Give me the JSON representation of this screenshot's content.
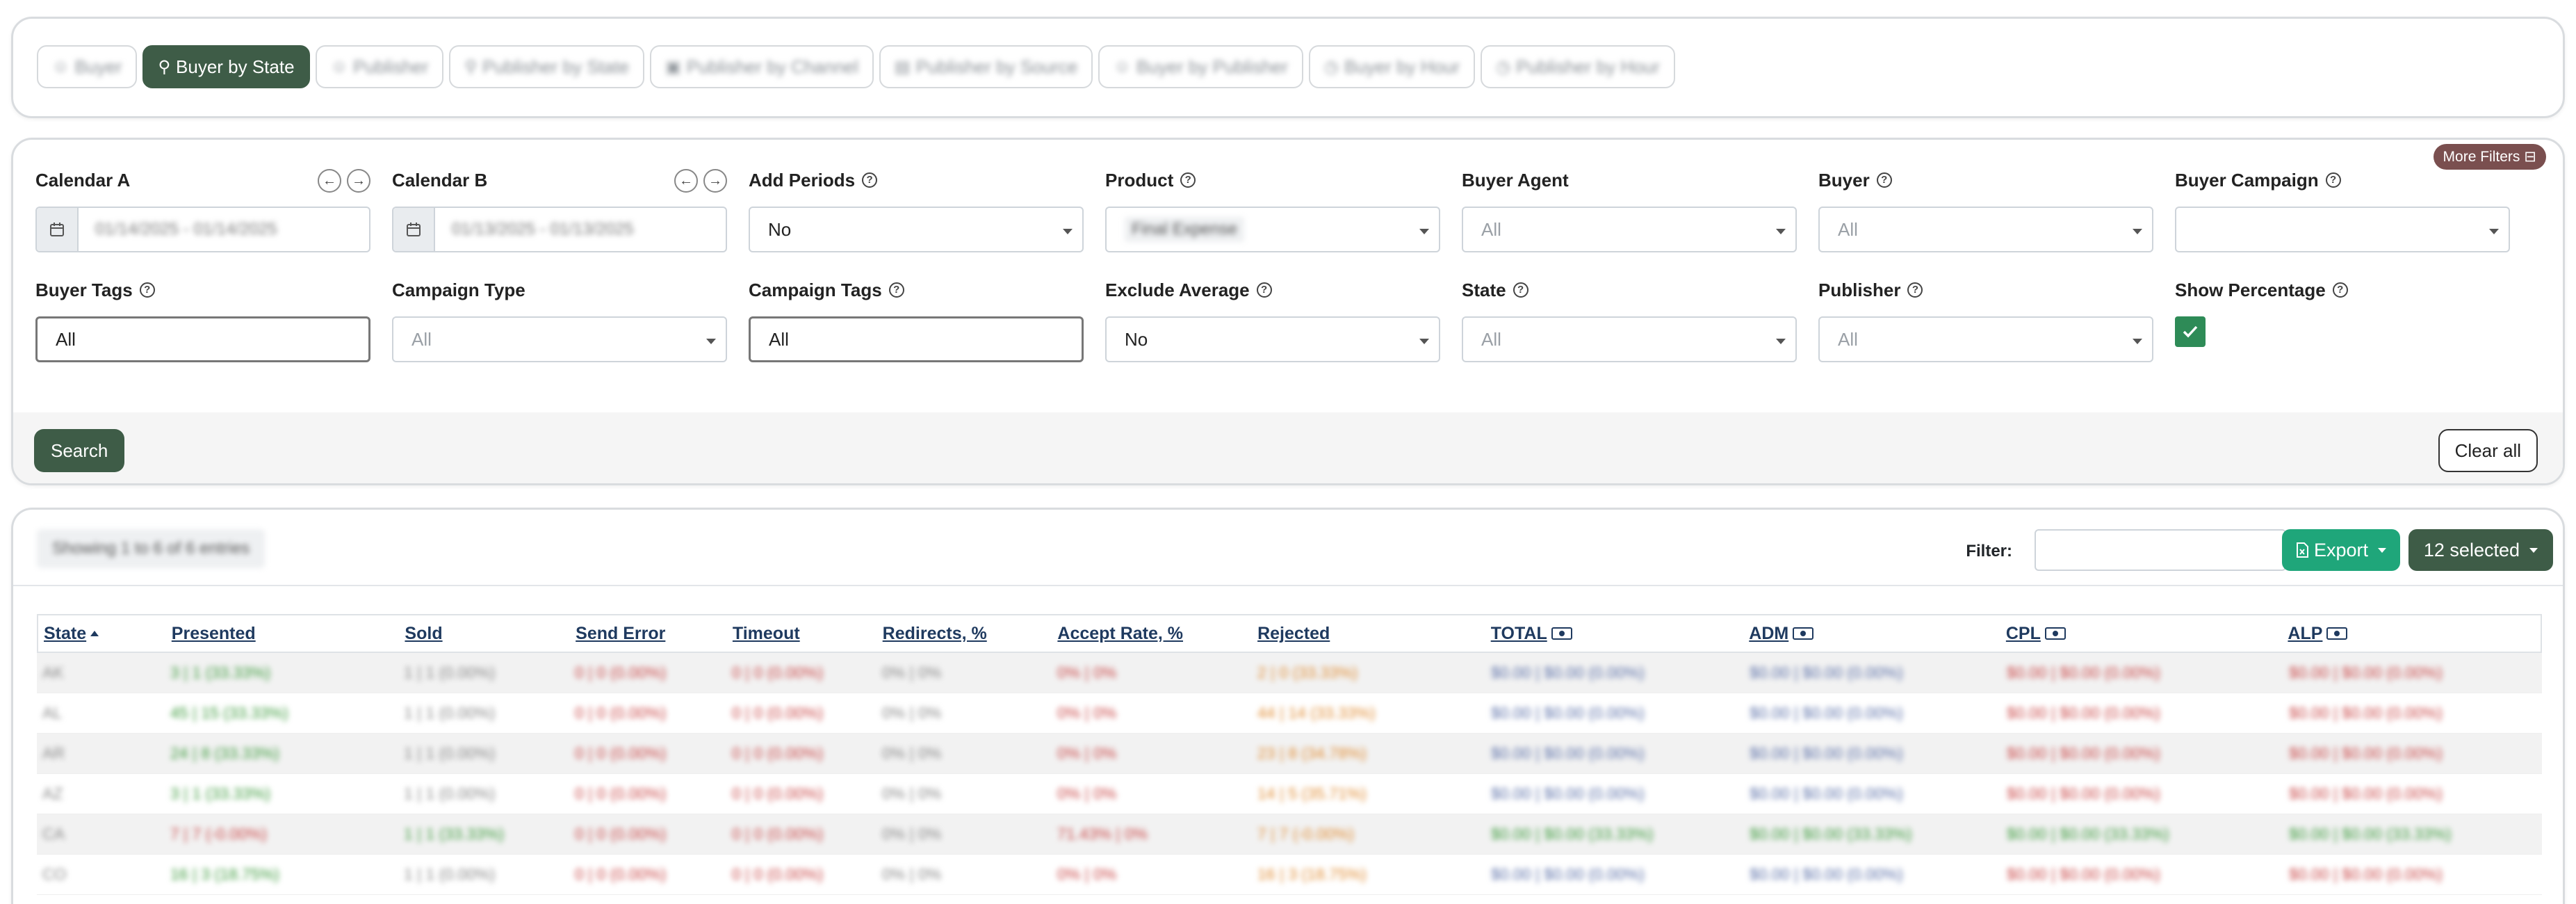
{
  "tabs": [
    {
      "label": "Buyer",
      "icon": "user-icon",
      "active": false
    },
    {
      "label": "Buyer by State",
      "icon": "map-pin-icon",
      "active": true
    },
    {
      "label": "Publisher",
      "icon": "user-icon",
      "active": false
    },
    {
      "label": "Publisher by State",
      "icon": "map-pin-icon",
      "active": false
    },
    {
      "label": "Publisher by Channel",
      "icon": "channel-icon",
      "active": false
    },
    {
      "label": "Publisher by Source",
      "icon": "source-icon",
      "active": false
    },
    {
      "label": "Buyer by Publisher",
      "icon": "user-icon",
      "active": false
    },
    {
      "label": "Buyer by Hour",
      "icon": "clock-icon",
      "active": false
    },
    {
      "label": "Publisher by Hour",
      "icon": "clock-icon",
      "active": false
    }
  ],
  "filters": {
    "more_filters": "More Filters",
    "calendar_a": {
      "label": "Calendar A",
      "value": "01/14/2025 - 01/14/2025"
    },
    "calendar_b": {
      "label": "Calendar B",
      "value": "01/13/2025 - 01/13/2025"
    },
    "add_periods": {
      "label": "Add Periods",
      "value": "No"
    },
    "product": {
      "label": "Product",
      "value": "Final Expense"
    },
    "buyer_agent": {
      "label": "Buyer Agent",
      "value": "All"
    },
    "buyer": {
      "label": "Buyer",
      "value": "All"
    },
    "buyer_campaign": {
      "label": "Buyer Campaign",
      "value": ""
    },
    "buyer_tags": {
      "label": "Buyer Tags",
      "value": "All"
    },
    "campaign_type": {
      "label": "Campaign Type",
      "value": "All"
    },
    "campaign_tags": {
      "label": "Campaign Tags",
      "value": "All"
    },
    "exclude_average": {
      "label": "Exclude Average",
      "value": "No"
    },
    "state": {
      "label": "State",
      "value": "All"
    },
    "publisher": {
      "label": "Publisher",
      "value": "All"
    },
    "show_percentage": {
      "label": "Show Percentage",
      "checked": true
    },
    "search_label": "Search",
    "clear_label": "Clear all"
  },
  "table": {
    "showing": "Showing 1 to 6 of 6 entries",
    "filter_label": "Filter:",
    "export_label": "Export",
    "selected_label": "12 selected",
    "columns": [
      "State",
      "Presented",
      "Sold",
      "Send Error",
      "Timeout",
      "Redirects, %",
      "Accept Rate, %",
      "Rejected",
      "TOTAL",
      "ADM",
      "CPL",
      "ALP"
    ],
    "rows": [
      [
        "AK",
        "3 | 1 (33.33%)",
        "1 | 1 (0.00%)",
        "0 | 0 (0.00%)",
        "0 | 0 (0.00%)",
        "0% | 0%",
        "0% | 0%",
        "2 | 0 (33.33%)",
        "$0.00 | $0.00 (0.00%)",
        "$0.00 | $0.00 (0.00%)",
        "$0.00 | $0.00 (0.00%)",
        "$0.00 | $0.00 (0.00%)"
      ],
      [
        "AL",
        "45 | 15 (33.33%)",
        "1 | 1 (0.00%)",
        "0 | 0 (0.00%)",
        "0 | 0 (0.00%)",
        "0% | 0%",
        "0% | 0%",
        "44 | 14 (33.33%)",
        "$0.00 | $0.00 (0.00%)",
        "$0.00 | $0.00 (0.00%)",
        "$0.00 | $0.00 (0.00%)",
        "$0.00 | $0.00 (0.00%)"
      ],
      [
        "AR",
        "24 | 8 (33.33%)",
        "1 | 1 (0.00%)",
        "0 | 0 (0.00%)",
        "0 | 0 (0.00%)",
        "0% | 0%",
        "0% | 0%",
        "23 | 8 (34.78%)",
        "$0.00 | $0.00 (0.00%)",
        "$0.00 | $0.00 (0.00%)",
        "$0.00 | $0.00 (0.00%)",
        "$0.00 | $0.00 (0.00%)"
      ],
      [
        "AZ",
        "3 | 1 (33.33%)",
        "1 | 1 (0.00%)",
        "0 | 0 (0.00%)",
        "0 | 0 (0.00%)",
        "0% | 0%",
        "0% | 0%",
        "14 | 5 (35.71%)",
        "$0.00 | $0.00 (0.00%)",
        "$0.00 | $0.00 (0.00%)",
        "$0.00 | $0.00 (0.00%)",
        "$0.00 | $0.00 (0.00%)"
      ],
      [
        "CA",
        "7 | 7 (-0.00%)",
        "1 | 1 (33.33%)",
        "0 | 0 (0.00%)",
        "0 | 0 (0.00%)",
        "0% | 0%",
        "71.43% | 0%",
        "7 | 7 (-0.00%)",
        "$0.00 | $0.00 (33.33%)",
        "$0.00 | $0.00 (33.33%)",
        "$0.00 | $0.00 (33.33%)",
        "$0.00 | $0.00 (33.33%)"
      ],
      [
        "CO",
        "16 | 3 (18.75%)",
        "1 | 1 (0.00%)",
        "0 | 0 (0.00%)",
        "0 | 0 (0.00%)",
        "0% | 0%",
        "0% | 0%",
        "16 | 3 (18.75%)",
        "$0.00 | $0.00 (0.00%)",
        "$0.00 | $0.00 (0.00%)",
        "$0.00 | $0.00 (0.00%)",
        "$0.00 | $0.00 (0.00%)"
      ]
    ],
    "row_colors": [
      [
        "gry",
        "grn",
        "gry",
        "red",
        "red",
        "gry",
        "red",
        "org",
        "blu",
        "blu",
        "red",
        "red"
      ],
      [
        "gry",
        "grn",
        "gry",
        "red",
        "red",
        "gry",
        "red",
        "org",
        "blu",
        "blu",
        "red",
        "red"
      ],
      [
        "gry",
        "grn",
        "gry",
        "red",
        "red",
        "gry",
        "red",
        "org",
        "blu",
        "blu",
        "red",
        "red"
      ],
      [
        "gry",
        "grn",
        "gry",
        "red",
        "red",
        "gry",
        "red",
        "org",
        "blu",
        "blu",
        "red",
        "red"
      ],
      [
        "gry",
        "red",
        "grn",
        "red",
        "red",
        "gry",
        "red",
        "org",
        "grn",
        "grn",
        "grn",
        "grn"
      ],
      [
        "gry",
        "grn",
        "gry",
        "red",
        "red",
        "gry",
        "red",
        "org",
        "blu",
        "blu",
        "red",
        "red"
      ]
    ]
  }
}
